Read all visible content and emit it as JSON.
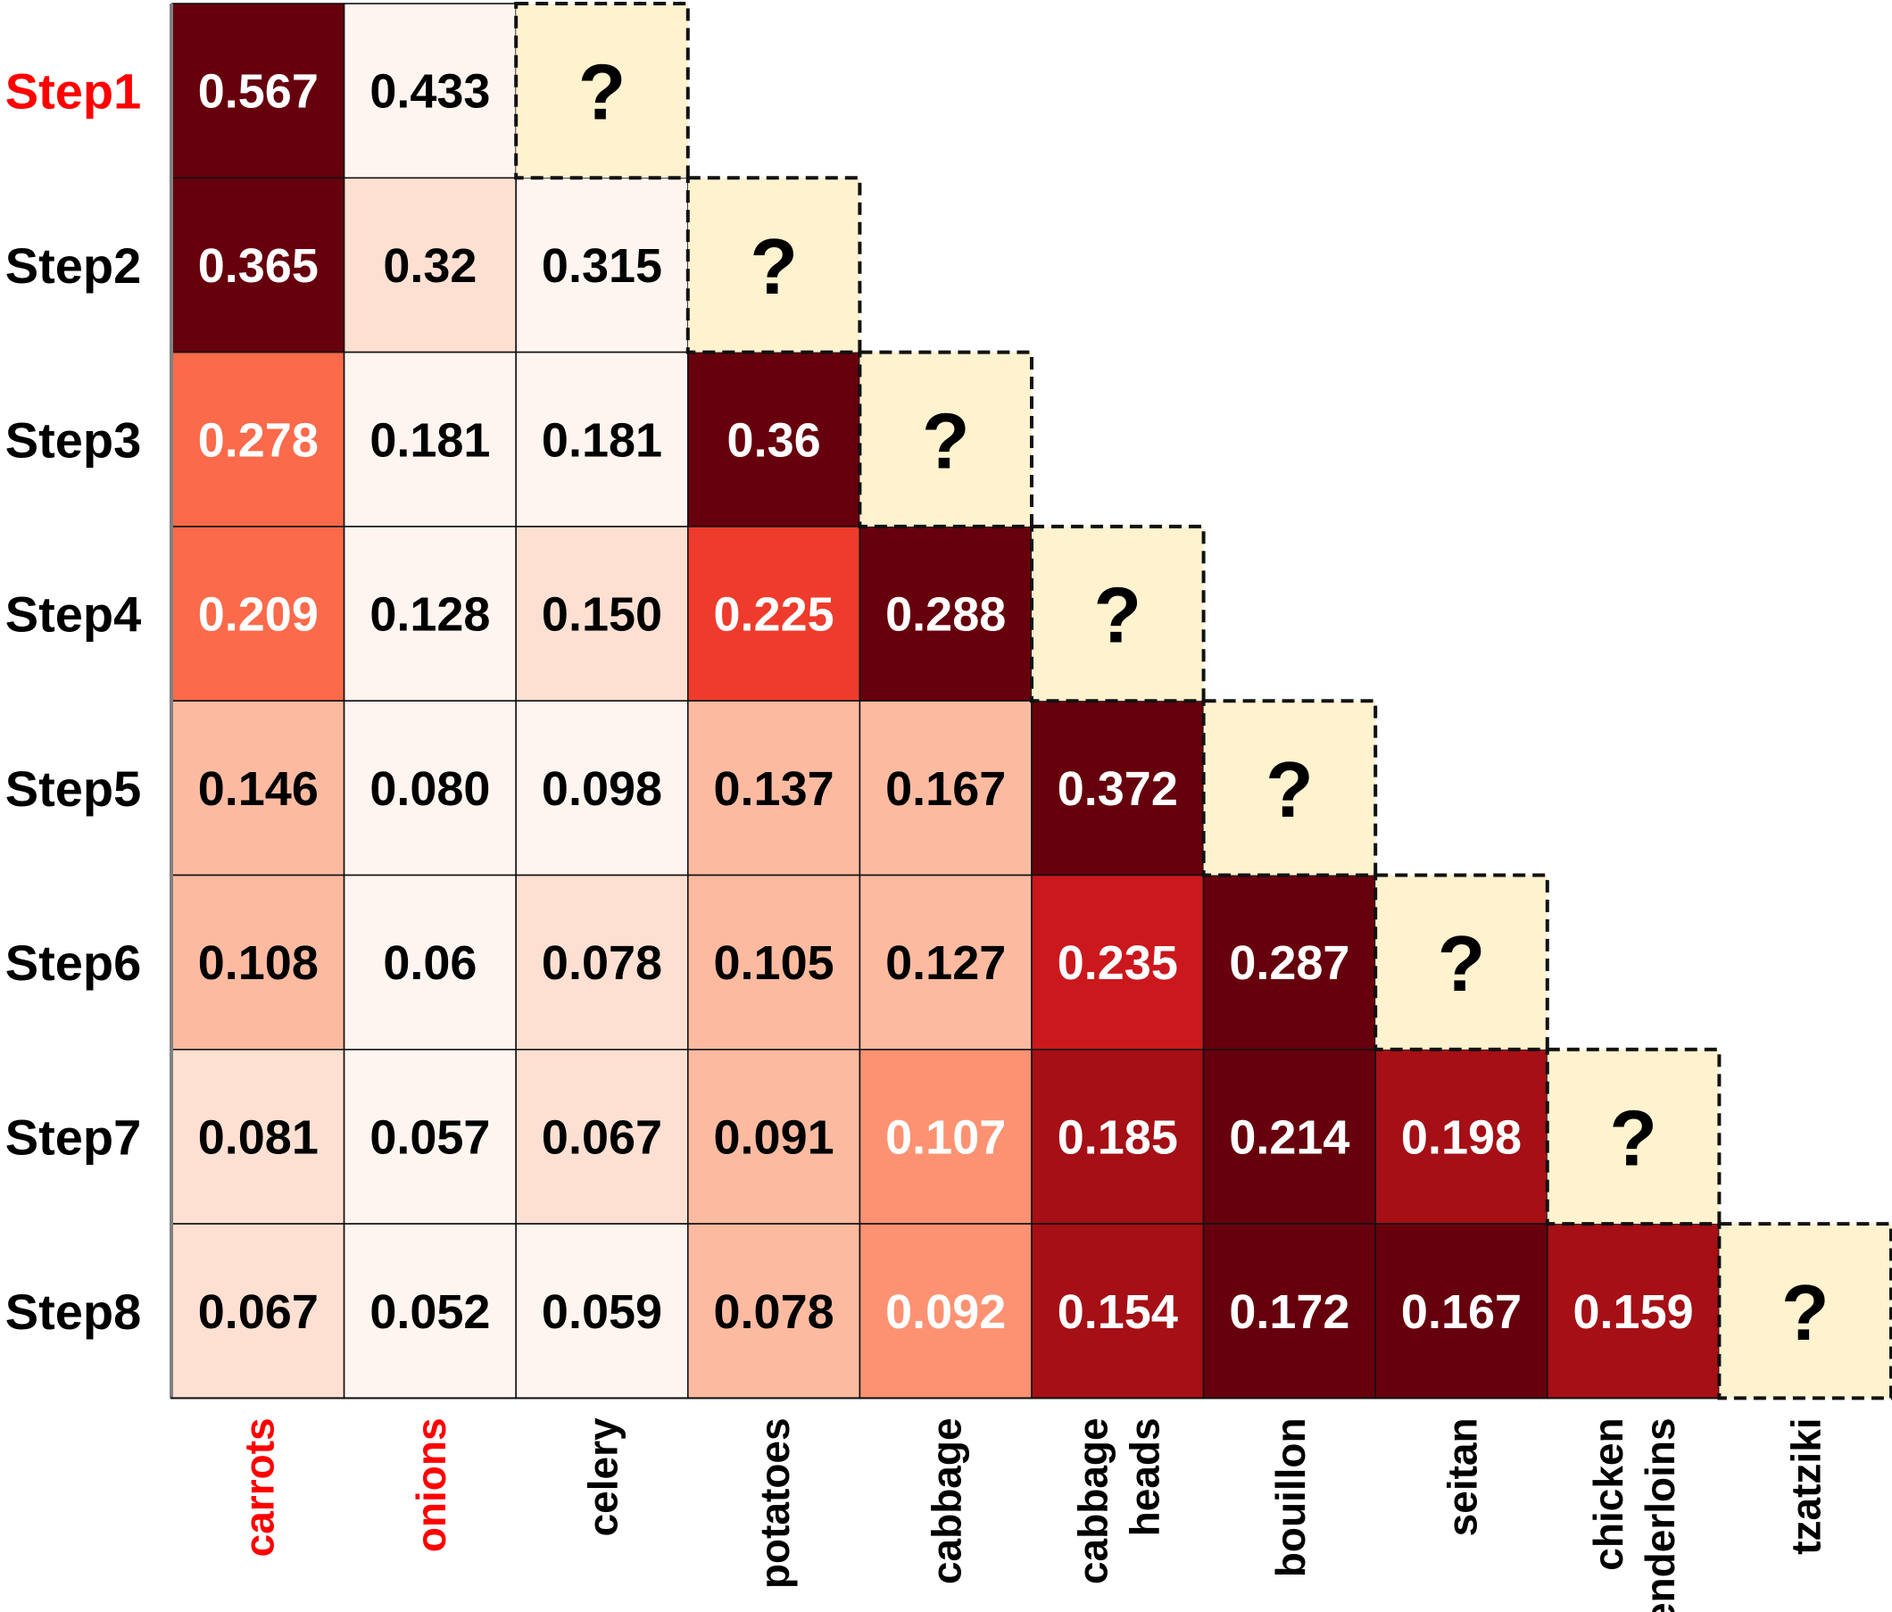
{
  "chart_data": {
    "type": "heatmap",
    "title": "",
    "xlabel": "",
    "ylabel": "",
    "rows": [
      "Step1",
      "Step2",
      "Step3",
      "Step4",
      "Step5",
      "Step6",
      "Step7",
      "Step8"
    ],
    "columns": [
      [
        "carrots"
      ],
      [
        "onions"
      ],
      [
        "celery"
      ],
      [
        "potatoes"
      ],
      [
        "cabbage"
      ],
      [
        "cabbage",
        "heads"
      ],
      [
        "bouillon"
      ],
      [
        "seitan"
      ],
      [
        "chicken",
        "tenderloins"
      ],
      [
        "tzatziki"
      ]
    ],
    "values": [
      [
        "0.567",
        "0.433"
      ],
      [
        "0.365",
        "0.32",
        "0.315"
      ],
      [
        "0.278",
        "0.181",
        "0.181",
        "0.36"
      ],
      [
        "0.209",
        "0.128",
        "0.150",
        "0.225",
        "0.288"
      ],
      [
        "0.146",
        "0.080",
        "0.098",
        "0.137",
        "0.167",
        "0.372"
      ],
      [
        "0.108",
        "0.06",
        "0.078",
        "0.105",
        "0.127",
        "0.235",
        "0.287"
      ],
      [
        "0.081",
        "0.057",
        "0.067",
        "0.091",
        "0.107",
        "0.185",
        "0.214",
        "0.198"
      ],
      [
        "0.067",
        "0.052",
        "0.059",
        "0.078",
        "0.092",
        "0.154",
        "0.172",
        "0.167",
        "0.159"
      ]
    ],
    "unknown_marker": "?",
    "highlighted_rows": [
      "Step1"
    ],
    "highlighted_columns": [
      "carrots",
      "onions"
    ],
    "colors": {
      "highlight_text": "#ff0000",
      "unknown_fill": "#fff2cf",
      "palette": [
        "#fff5f0",
        "#fee0d2",
        "#fcbba1",
        "#fc9272",
        "#fb6a4a",
        "#ef3b2c",
        "#cb181d",
        "#a50f15",
        "#67000d"
      ]
    }
  }
}
